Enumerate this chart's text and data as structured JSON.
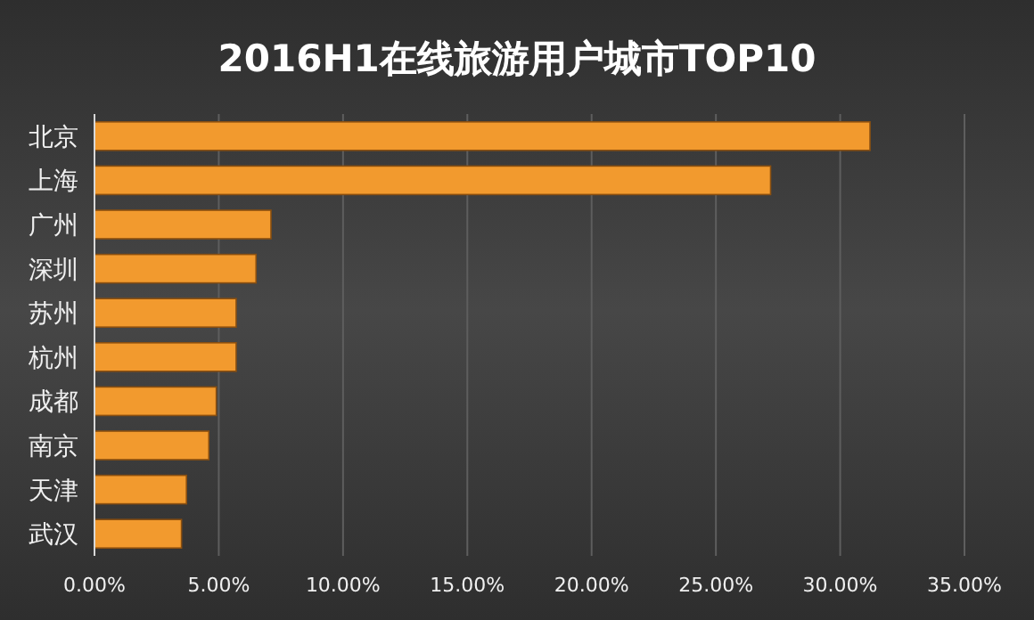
{
  "chart_data": {
    "type": "bar",
    "orientation": "horizontal",
    "title": "2016H1在线旅游用户城市TOP10",
    "categories": [
      "北京",
      "上海",
      "广州",
      "深圳",
      "苏州",
      "杭州",
      "成都",
      "南京",
      "天津",
      "武汉"
    ],
    "values": [
      31.2,
      27.2,
      7.1,
      6.5,
      5.7,
      5.7,
      4.9,
      4.6,
      3.7,
      3.5
    ],
    "color": "#f29a2e",
    "xlim": [
      0,
      35
    ],
    "xticks": [
      {
        "value": 0,
        "label": "0.00%"
      },
      {
        "value": 5,
        "label": "5.00%"
      },
      {
        "value": 10,
        "label": "10.00%"
      },
      {
        "value": 15,
        "label": "15.00%"
      },
      {
        "value": 20,
        "label": "20.00%"
      },
      {
        "value": 25,
        "label": "25.00%"
      },
      {
        "value": 30,
        "label": "30.00%"
      },
      {
        "value": 35,
        "label": "35.00%"
      }
    ],
    "grid": "x"
  }
}
